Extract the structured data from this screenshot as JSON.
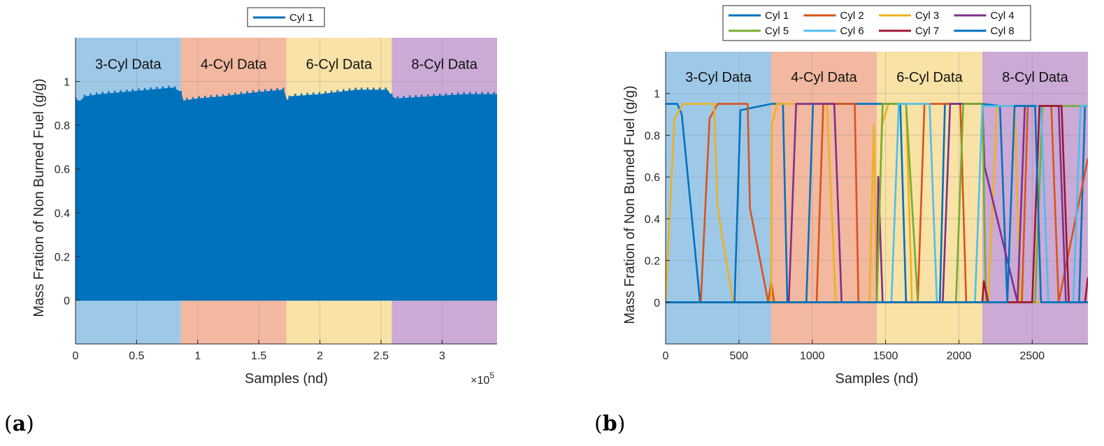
{
  "chart_data": [
    {
      "panel_label": {
        "open": "(",
        "letter": "a",
        "close": ")"
      },
      "type": "line",
      "xlabel": "Samples (nd)",
      "ylabel": "Mass Fration of Non Burned Fuel (g/g)",
      "xlim": [
        0,
        345000
      ],
      "ylim": [
        -0.2,
        1.2
      ],
      "x_exponent_label": "×10",
      "x_exponent_power": "5",
      "xticks": [
        0,
        50000,
        100000,
        150000,
        200000,
        250000,
        300000
      ],
      "xtick_labels": [
        "0",
        "0.5",
        "1",
        "1.5",
        "2",
        "2.5",
        "3"
      ],
      "yticks": [
        0,
        0.2,
        0.4,
        0.6,
        0.8,
        1
      ],
      "ytick_labels": [
        "0",
        "0.2",
        "0.4",
        "0.6",
        "0.8",
        "1"
      ],
      "grid": true,
      "legend_position": "top-center",
      "regions": [
        {
          "label": "3-Cyl Data",
          "x": [
            0,
            86250
          ],
          "color": "#9ec8e8"
        },
        {
          "label": "4-Cyl Data",
          "x": [
            86250,
            172500
          ],
          "color": "#f2b8a0"
        },
        {
          "label": "6-Cyl Data",
          "x": [
            172500,
            258750
          ],
          "color": "#f8e2a6"
        },
        {
          "label": "8-Cyl Data",
          "x": [
            258750,
            345000
          ],
          "color": "#cbaad6"
        }
      ],
      "series": [
        {
          "name": "Cyl 1",
          "color": "#0072bd",
          "style": "dense band",
          "band_min": 0.0,
          "envelope": {
            "x": [
              0,
              2000,
              8000,
              20000,
              40000,
              60000,
              80000,
              86000,
              88000,
              100000,
              120000,
              150000,
              170000,
              173000,
              176000,
              200000,
              230000,
              255000,
              259000,
              262000,
              290000,
              320000,
              345000
            ],
            "y": [
              0.93,
              0.9,
              0.93,
              0.94,
              0.95,
              0.96,
              0.97,
              0.95,
              0.91,
              0.92,
              0.93,
              0.95,
              0.96,
              0.91,
              0.93,
              0.94,
              0.96,
              0.96,
              0.93,
              0.92,
              0.93,
              0.94,
              0.94
            ]
          }
        }
      ]
    },
    {
      "panel_label": {
        "open": "(",
        "letter": "b",
        "close": ")"
      },
      "type": "line",
      "xlabel": "Samples (nd)",
      "ylabel": "Mass Fration of Non Burned Fuel (g/g)",
      "xlim": [
        0,
        2880
      ],
      "ylim": [
        -0.2,
        1.2
      ],
      "xticks": [
        0,
        500,
        1000,
        1500,
        2000,
        2500
      ],
      "xtick_labels": [
        "0",
        "500",
        "1000",
        "1500",
        "2000",
        "2500"
      ],
      "yticks": [
        0,
        0.2,
        0.4,
        0.6,
        0.8,
        1
      ],
      "ytick_labels": [
        "0",
        "0.2",
        "0.4",
        "0.6",
        "0.8",
        "1"
      ],
      "grid": true,
      "legend_position": "top-center",
      "regions": [
        {
          "label": "3-Cyl Data",
          "x": [
            0,
            720
          ],
          "color": "#9ec8e8"
        },
        {
          "label": "4-Cyl Data",
          "x": [
            720,
            1440
          ],
          "color": "#f2b8a0"
        },
        {
          "label": "6-Cyl Data",
          "x": [
            1440,
            2160
          ],
          "color": "#f8e2a6"
        },
        {
          "label": "8-Cyl Data",
          "x": [
            2160,
            2880
          ],
          "color": "#cbaad6"
        }
      ],
      "series": [
        {
          "name": "Cyl 1",
          "color": "#0072bd",
          "x": [
            0,
            80,
            110,
            235,
            470,
            510,
            720,
            800,
            830,
            960,
            1005,
            1440,
            1600,
            1640,
            1870,
            1905,
            2160,
            2280,
            2330,
            2820,
            2860,
            2880
          ],
          "y": [
            0.95,
            0.95,
            0.9,
            0.0,
            0.0,
            0.92,
            0.95,
            0.95,
            0.0,
            0.0,
            0.95,
            0.95,
            0.95,
            0.0,
            0.0,
            0.95,
            0.95,
            0.94,
            0.0,
            0.0,
            0.94,
            0.94
          ]
        },
        {
          "name": "Cyl 2",
          "color": "#d95319",
          "x": [
            0,
            240,
            300,
            355,
            560,
            575,
            700,
            720,
            740,
            1030,
            1075,
            1290,
            1315,
            1440,
            1720,
            1765,
            2010,
            2050,
            2160,
            2430,
            2470,
            2630,
            2680,
            2880
          ],
          "y": [
            0.0,
            0.0,
            0.88,
            0.95,
            0.95,
            0.45,
            0.0,
            0.1,
            0.0,
            0.0,
            0.95,
            0.95,
            0.0,
            0.0,
            0.0,
            0.95,
            0.95,
            0.0,
            0.0,
            0.0,
            0.94,
            0.94,
            0.0,
            0.69
          ]
        },
        {
          "name": "Cyl 3",
          "color": "#edb120",
          "x": [
            0,
            20,
            60,
            120,
            330,
            355,
            460,
            720,
            725,
            760,
            1100,
            1160,
            1390,
            1420,
            1440,
            1475,
            1520,
            1640,
            1680,
            2200,
            2260,
            2380,
            2420,
            2880
          ],
          "y": [
            0.0,
            0.3,
            0.88,
            0.95,
            0.95,
            0.45,
            0.0,
            0.0,
            0.85,
            0.95,
            0.95,
            0.0,
            0.0,
            0.85,
            0.0,
            0.85,
            0.95,
            0.95,
            0.0,
            0.0,
            0.94,
            0.94,
            0.0,
            0.0
          ]
        },
        {
          "name": "Cyl 4",
          "color": "#7e2f8e",
          "x": [
            0,
            840,
            890,
            1150,
            1200,
            1440,
            1450,
            1480,
            1530,
            1890,
            1940,
            2160,
            2175,
            2400,
            2450,
            2680,
            2730,
            2880
          ],
          "y": [
            0.0,
            0.0,
            0.95,
            0.95,
            0.0,
            0.0,
            0.6,
            0.0,
            0.0,
            0.0,
            0.95,
            0.95,
            0.65,
            0.0,
            0.94,
            0.94,
            0.0,
            0.0
          ]
        },
        {
          "name": "Cyl 5",
          "color": "#77ac30",
          "x": [
            0,
            1440,
            1480,
            1640,
            1720,
            1980,
            2030,
            2160,
            2185,
            2520,
            2570,
            2880
          ],
          "y": [
            0.0,
            0.0,
            0.95,
            0.95,
            0.0,
            0.0,
            0.95,
            0.95,
            0.0,
            0.0,
            0.94,
            0.94
          ]
        },
        {
          "name": "Cyl 6",
          "color": "#4dbeee",
          "x": [
            0,
            1540,
            1590,
            1800,
            1850,
            2110,
            2160,
            2560,
            2610,
            2780,
            2830,
            2880
          ],
          "y": [
            0.0,
            0.0,
            0.95,
            0.95,
            0.0,
            0.0,
            0.94,
            0.94,
            0.0,
            0.0,
            0.94,
            0.94
          ]
        },
        {
          "name": "Cyl 7",
          "color": "#a2142f",
          "x": [
            0,
            2160,
            2170,
            2200,
            2500,
            2550,
            2700,
            2750,
            2860,
            2880
          ],
          "y": [
            0.0,
            0.0,
            0.1,
            0.0,
            0.0,
            0.94,
            0.94,
            0.0,
            0.0,
            0.12
          ]
        },
        {
          "name": "Cyl 8",
          "color": "#0072bd",
          "x": [
            0,
            2160,
            2330,
            2380,
            2520,
            2560,
            2880
          ],
          "y": [
            0.0,
            0.0,
            0.0,
            0.94,
            0.94,
            0.0,
            0.0
          ]
        }
      ]
    }
  ]
}
